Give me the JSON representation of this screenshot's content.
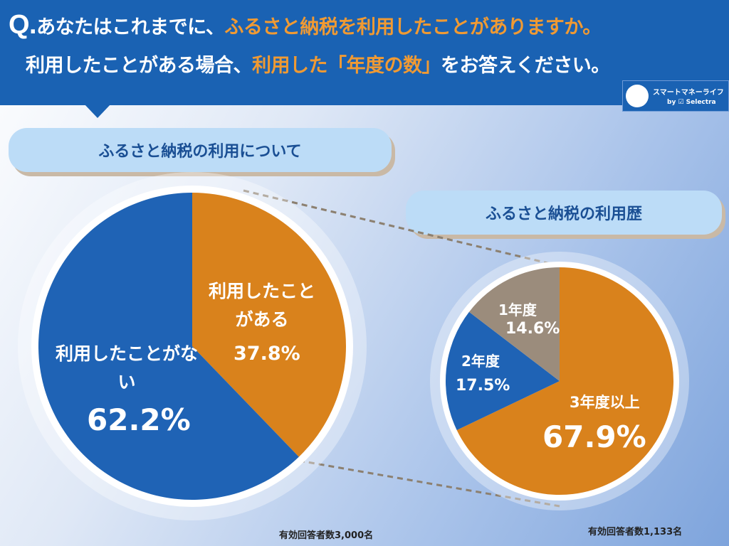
{
  "header": {
    "q_mark": "Q.",
    "line1_a": "あなたはこれまでに、",
    "line1_b": "ふるさと納税を利用したことがありますか。",
    "line2_a": "利用したことがある場合、",
    "line2_b": "利用した「年度の数」",
    "line2_c": "をお答えください。"
  },
  "logo": {
    "name": "スマートマネーライフ",
    "by": "by",
    "brand": "Selectra"
  },
  "colors": {
    "blue": "#1f63b5",
    "orange": "#d9821c",
    "gray": "#9b8c7c",
    "header": "#1a62b3"
  },
  "chart_data": [
    {
      "type": "pie",
      "title": "ふるさと納税の利用について",
      "categories": [
        "利用したことがある",
        "利用したことがない"
      ],
      "values": [
        37.8,
        62.2
      ],
      "labels": [
        "37.8%",
        "62.2%"
      ],
      "note": "有効回答者数3,000名"
    },
    {
      "type": "pie",
      "title": "ふるさと納税の利用歴",
      "categories": [
        "3年度以上",
        "2年度",
        "1年度"
      ],
      "values": [
        67.9,
        17.5,
        14.6
      ],
      "labels": [
        "67.9%",
        "17.5%",
        "14.6%"
      ],
      "note": "有効回答者数1,133名"
    }
  ]
}
